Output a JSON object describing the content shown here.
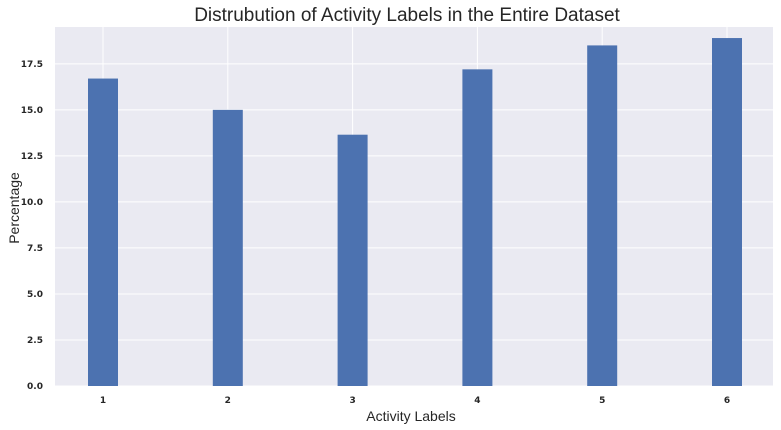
{
  "chart_data": {
    "type": "bar",
    "title": "Distrubution of Activity Labels in the Entire Dataset",
    "xlabel": "Activity Labels",
    "ylabel": "Percentage",
    "categories": [
      "1",
      "2",
      "3",
      "4",
      "5",
      "6"
    ],
    "values": [
      16.7,
      15.0,
      13.65,
      17.2,
      18.5,
      18.9
    ],
    "ylim": [
      0,
      19.5
    ],
    "yticks": [
      0.0,
      2.5,
      5.0,
      7.5,
      10.0,
      12.5,
      15.0,
      17.5
    ],
    "ytick_labels": [
      "0.0",
      "2.5",
      "5.0",
      "7.5",
      "10.0",
      "12.5",
      "15.0",
      "17.5"
    ],
    "grid": true,
    "colors": {
      "bar": "#4c72b0",
      "plot_background": "#eaeaf2",
      "grid": "#ffffff",
      "text": "#262626"
    }
  }
}
